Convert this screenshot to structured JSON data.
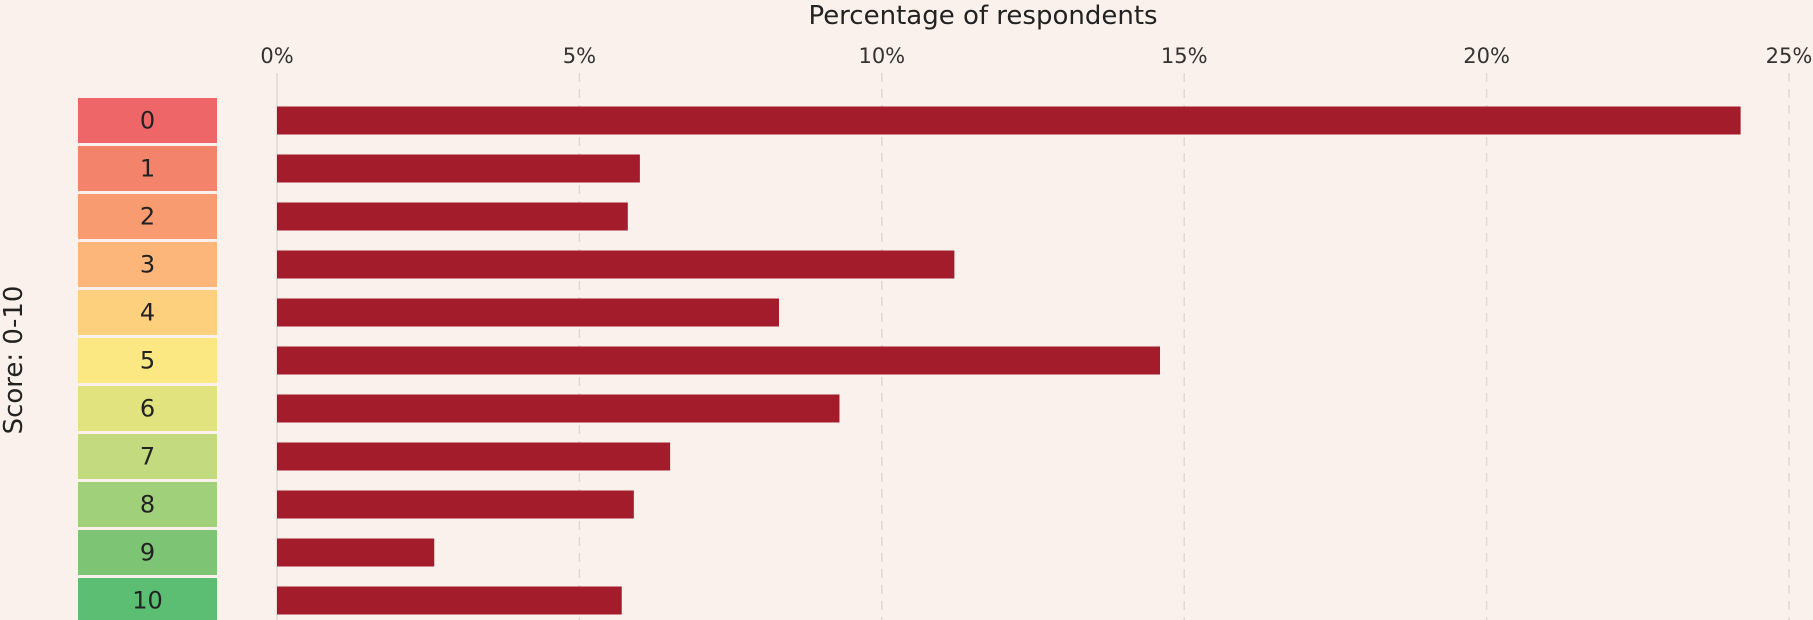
{
  "chart_data": {
    "type": "bar",
    "orientation": "horizontal",
    "xlabel": "Percentage of respondents",
    "ylabel": "Score: 0-10",
    "x_axis_position": "top",
    "xlim": [
      0,
      25
    ],
    "xticks": [
      0,
      5,
      10,
      15,
      20,
      25
    ],
    "xtick_labels": [
      "0%",
      "5%",
      "10%",
      "15%",
      "20%",
      "25%"
    ],
    "grid": "vertical dashed",
    "bar_color": "#a31c2b",
    "categories": [
      "0",
      "1",
      "2",
      "3",
      "4",
      "5",
      "6",
      "7",
      "8",
      "9",
      "10"
    ],
    "category_colors": [
      "#ef6668",
      "#f4836c",
      "#f89b70",
      "#fcb679",
      "#fdd07d",
      "#fce882",
      "#e1e37e",
      "#c4da7f",
      "#a0d07a",
      "#7dc574",
      "#5bbe72"
    ],
    "values": [
      24.2,
      6.0,
      5.8,
      11.2,
      8.3,
      14.6,
      9.3,
      6.5,
      5.9,
      2.6,
      5.7
    ]
  }
}
